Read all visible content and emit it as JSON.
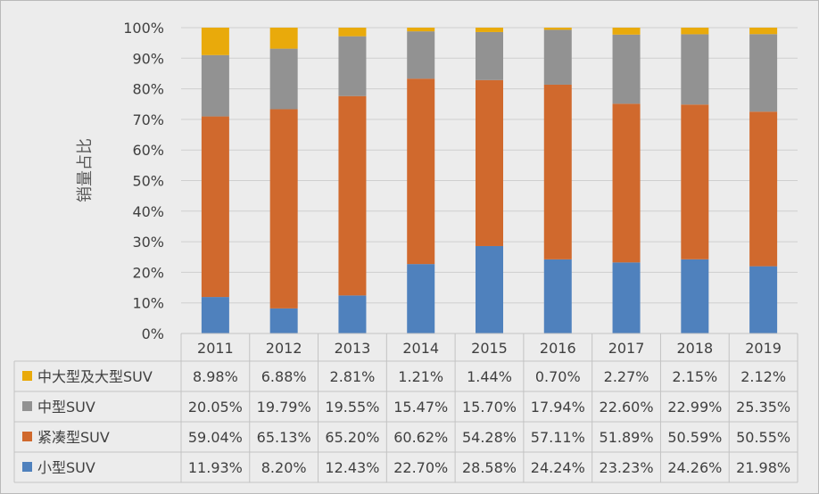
{
  "chart_data": {
    "type": "bar",
    "stacked": true,
    "ylabel": "销量占比",
    "ylim": [
      0,
      100
    ],
    "y_ticks": [
      "0%",
      "10%",
      "20%",
      "30%",
      "40%",
      "50%",
      "60%",
      "70%",
      "80%",
      "90%",
      "100%"
    ],
    "categories": [
      "2011",
      "2012",
      "2013",
      "2014",
      "2015",
      "2016",
      "2017",
      "2018",
      "2019"
    ],
    "grid": true,
    "legend": "data-table",
    "series": [
      {
        "name": "小型SUV",
        "color": "#4f81bd",
        "values": [
          11.93,
          8.2,
          12.43,
          22.7,
          28.58,
          24.24,
          23.23,
          24.26,
          21.98
        ],
        "labels": [
          "11.93%",
          "8.20%",
          "12.43%",
          "22.70%",
          "28.58%",
          "24.24%",
          "23.23%",
          "24.26%",
          "21.98%"
        ]
      },
      {
        "name": "紧凑型SUV",
        "color": "#d0692d",
        "values": [
          59.04,
          65.13,
          65.2,
          60.62,
          54.28,
          57.11,
          51.89,
          50.59,
          50.55
        ],
        "labels": [
          "59.04%",
          "65.13%",
          "65.20%",
          "60.62%",
          "54.28%",
          "57.11%",
          "51.89%",
          "50.59%",
          "50.55%"
        ]
      },
      {
        "name": "中型SUV",
        "color": "#929292",
        "values": [
          20.05,
          19.79,
          19.55,
          15.47,
          15.7,
          17.94,
          22.6,
          22.99,
          25.35
        ],
        "labels": [
          "20.05%",
          "19.79%",
          "19.55%",
          "15.47%",
          "15.70%",
          "17.94%",
          "22.60%",
          "22.99%",
          "25.35%"
        ]
      },
      {
        "name": "中大型及大型SUV",
        "color": "#e9aa0b",
        "values": [
          8.98,
          6.88,
          2.81,
          1.21,
          1.44,
          0.7,
          2.27,
          2.15,
          2.12
        ],
        "labels": [
          "8.98%",
          "6.88%",
          "2.81%",
          "1.21%",
          "1.44%",
          "0.70%",
          "2.27%",
          "2.15%",
          "2.12%"
        ]
      }
    ],
    "table_row_order": [
      3,
      2,
      1,
      0
    ]
  }
}
